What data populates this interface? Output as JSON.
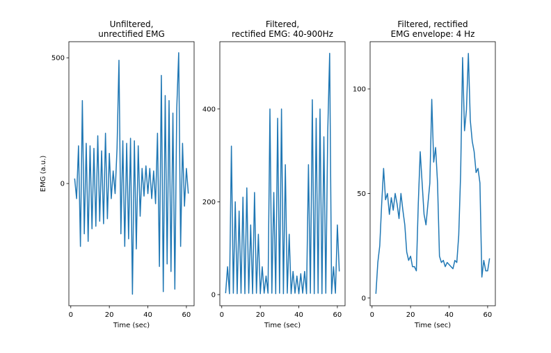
{
  "chart_data": [
    {
      "type": "line",
      "title": [
        "Unfiltered,",
        "unrectified EMG"
      ],
      "xlabel": "Time (sec)",
      "ylabel": "EMG (a.u.)",
      "xlim": [
        -1,
        64
      ],
      "ylim": [
        -486,
        564
      ],
      "xticks": [
        0,
        20,
        40,
        60
      ],
      "yticks": [
        0,
        500
      ],
      "color": "#1f77b4",
      "x": [
        2,
        3,
        4,
        5,
        6,
        7,
        8,
        9,
        10,
        11,
        12,
        13,
        14,
        15,
        16,
        17,
        18,
        19,
        20,
        21,
        22,
        23,
        24,
        25,
        26,
        27,
        28,
        29,
        30,
        31,
        32,
        33,
        34,
        35,
        36,
        37,
        38,
        39,
        40,
        41,
        42,
        43,
        44,
        45,
        46,
        47,
        48,
        49,
        50,
        51,
        52,
        53,
        54,
        55,
        56,
        57,
        58,
        59,
        60,
        61
      ],
      "values": [
        20,
        -60,
        150,
        -250,
        330,
        -200,
        160,
        -230,
        150,
        -180,
        140,
        -170,
        190,
        -150,
        130,
        -160,
        200,
        -140,
        120,
        -60,
        50,
        -40,
        140,
        490,
        -200,
        170,
        -250,
        160,
        -220,
        180,
        -440,
        170,
        -260,
        150,
        -130,
        60,
        -50,
        70,
        -40,
        60,
        -60,
        50,
        -80,
        200,
        -330,
        430,
        -430,
        350,
        -320,
        330,
        -350,
        280,
        -420,
        300,
        520,
        -250,
        160,
        -90,
        60,
        -40
      ]
    },
    {
      "type": "line",
      "title": [
        "Filtered,",
        "rectified EMG: 40-900Hz"
      ],
      "xlabel": "Time (sec)",
      "xlim": [
        -1,
        64
      ],
      "ylim": [
        -24,
        545
      ],
      "xticks": [
        0,
        20,
        40,
        60
      ],
      "yticks": [
        0,
        200,
        400
      ],
      "color": "#1f77b4",
      "x": [
        2,
        3,
        4,
        5,
        6,
        7,
        8,
        9,
        10,
        11,
        12,
        13,
        14,
        15,
        16,
        17,
        18,
        19,
        20,
        21,
        22,
        23,
        24,
        25,
        26,
        27,
        28,
        29,
        30,
        31,
        32,
        33,
        34,
        35,
        36,
        37,
        38,
        39,
        40,
        41,
        42,
        43,
        44,
        45,
        46,
        47,
        48,
        49,
        50,
        51,
        52,
        53,
        54,
        55,
        56,
        57,
        58,
        59,
        60,
        61
      ],
      "values": [
        3,
        60,
        2,
        320,
        3,
        200,
        2,
        180,
        3,
        210,
        2,
        230,
        3,
        150,
        2,
        220,
        3,
        130,
        2,
        60,
        3,
        40,
        3,
        400,
        3,
        220,
        2,
        380,
        3,
        400,
        2,
        280,
        3,
        130,
        2,
        50,
        3,
        40,
        2,
        45,
        3,
        50,
        2,
        280,
        3,
        420,
        2,
        380,
        3,
        400,
        2,
        340,
        3,
        350,
        520,
        2,
        60,
        3,
        150,
        50
      ]
    },
    {
      "type": "line",
      "title": [
        "Filtered, rectified",
        "EMG envelope: 4 Hz"
      ],
      "xlabel": "Time (sec)",
      "xlim": [
        -1,
        64
      ],
      "ylim": [
        -3.7,
        122.6
      ],
      "xticks": [
        0,
        20,
        40,
        60
      ],
      "yticks": [
        0,
        50,
        100
      ],
      "color": "#1f77b4",
      "x": [
        2,
        3,
        4,
        5,
        6,
        7,
        8,
        9,
        10,
        11,
        12,
        13,
        14,
        15,
        16,
        17,
        18,
        19,
        20,
        21,
        22,
        23,
        24,
        25,
        26,
        27,
        28,
        29,
        30,
        31,
        32,
        33,
        34,
        35,
        36,
        37,
        38,
        39,
        40,
        41,
        42,
        43,
        44,
        45,
        46,
        47,
        48,
        49,
        50,
        51,
        52,
        53,
        54,
        55,
        56,
        57,
        58,
        59,
        60,
        61
      ],
      "values": [
        2,
        17,
        25,
        45,
        62,
        47,
        50,
        40,
        48,
        42,
        50,
        45,
        38,
        50,
        42,
        35,
        22,
        18,
        20,
        15,
        15,
        13,
        45,
        70,
        55,
        40,
        35,
        45,
        55,
        95,
        65,
        72,
        55,
        20,
        17,
        18,
        15,
        17,
        16,
        15,
        14,
        18,
        17,
        30,
        60,
        115,
        80,
        90,
        117,
        85,
        75,
        70,
        60,
        62,
        55,
        10,
        18,
        13,
        13,
        19
      ]
    }
  ]
}
